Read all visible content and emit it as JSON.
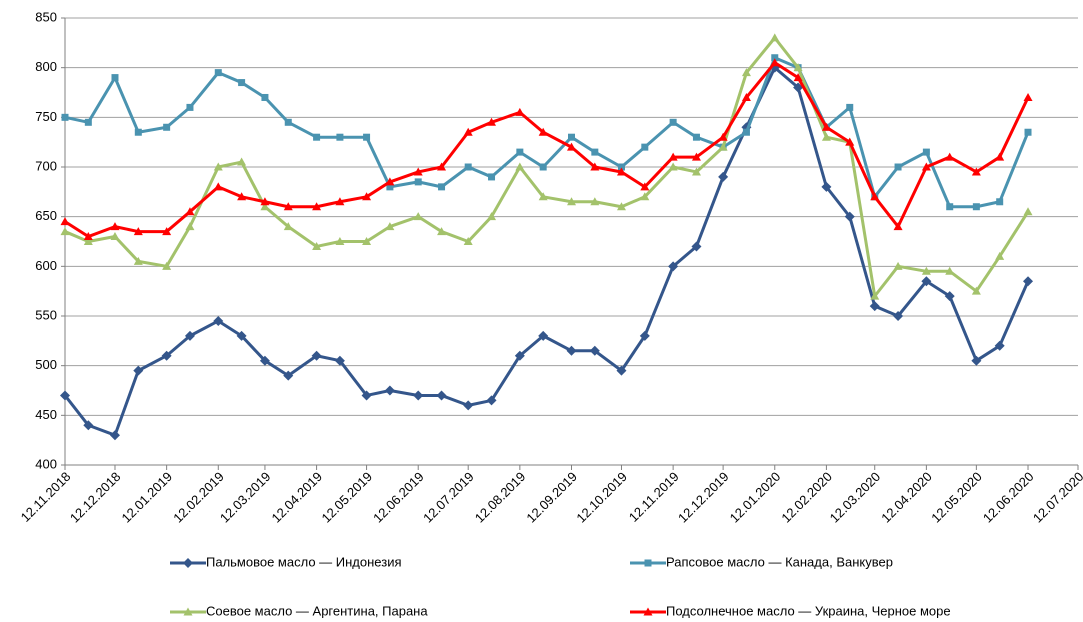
{
  "chart_data": {
    "type": "line",
    "x": [
      "12.11.2018",
      "26.11.2018",
      "12.12.2018",
      "26.12.2018",
      "12.01.2019",
      "26.01.2019",
      "12.02.2019",
      "26.02.2019",
      "12.03.2019",
      "26.03.2019",
      "12.04.2019",
      "26.04.2019",
      "12.05.2019",
      "26.05.2019",
      "12.06.2019",
      "26.06.2019",
      "12.07.2019",
      "26.07.2019",
      "12.08.2019",
      "26.08.2019",
      "12.09.2019",
      "26.09.2019",
      "12.10.2019",
      "26.10.2019",
      "12.11.2019",
      "26.11.2019",
      "12.12.2019",
      "26.12.2019",
      "12.01.2020",
      "26.01.2020",
      "12.02.2020",
      "26.02.2020",
      "12.03.2020",
      "26.03.2020",
      "12.04.2020",
      "26.04.2020",
      "12.05.2020",
      "26.05.2020",
      "12.06.2020"
    ],
    "series": [
      {
        "name": "Пальмовое масло — Индонезия",
        "color": "#34568b",
        "marker": "diamond",
        "values": [
          470,
          440,
          430,
          495,
          510,
          530,
          545,
          530,
          505,
          490,
          510,
          505,
          470,
          475,
          470,
          470,
          460,
          465,
          510,
          530,
          515,
          515,
          495,
          530,
          600,
          620,
          690,
          740,
          800,
          780,
          680,
          650,
          560,
          550,
          585,
          570,
          505,
          520,
          585
        ]
      },
      {
        "name": "Рапсовое масло — Канада, Ванкувер",
        "color": "#4a93b0",
        "marker": "square",
        "values": [
          750,
          745,
          790,
          735,
          740,
          760,
          795,
          785,
          770,
          745,
          730,
          730,
          730,
          680,
          685,
          680,
          700,
          690,
          715,
          700,
          730,
          715,
          700,
          720,
          745,
          730,
          720,
          735,
          810,
          800,
          740,
          760,
          670,
          700,
          715,
          660,
          660,
          665,
          735
        ]
      },
      {
        "name": "Соевое масло — Аргентина,  Парана",
        "color": "#a3c26b",
        "marker": "triangle",
        "values": [
          635,
          625,
          630,
          605,
          600,
          640,
          700,
          705,
          660,
          640,
          620,
          625,
          625,
          640,
          650,
          635,
          625,
          650,
          700,
          670,
          665,
          665,
          660,
          670,
          700,
          695,
          720,
          795,
          830,
          800,
          730,
          725,
          570,
          600,
          595,
          595,
          575,
          610,
          655
        ]
      },
      {
        "name": "Подсолнечное масло — Украина, Черное море",
        "color": "#ff0000",
        "marker": "triangle",
        "values": [
          645,
          630,
          640,
          635,
          635,
          655,
          680,
          670,
          665,
          660,
          660,
          665,
          670,
          685,
          695,
          700,
          735,
          745,
          755,
          735,
          720,
          700,
          695,
          680,
          710,
          710,
          730,
          770,
          805,
          790,
          740,
          725,
          670,
          640,
          700,
          710,
          695,
          710,
          770
        ]
      }
    ],
    "xlim": [
      "12.11.2018",
      "12.07.2020"
    ],
    "xticks": [
      "12.11.2018",
      "12.12.2018",
      "12.01.2019",
      "12.02.2019",
      "12.03.2019",
      "12.04.2019",
      "12.05.2019",
      "12.06.2019",
      "12.07.2019",
      "12.08.2019",
      "12.09.2019",
      "12.10.2019",
      "12.11.2019",
      "12.12.2019",
      "12.01.2020",
      "12.02.2020",
      "12.03.2020",
      "12.04.2020",
      "12.05.2020",
      "12.06.2020",
      "12.07.2020"
    ],
    "ylim": [
      400,
      850
    ],
    "yticks": [
      400,
      450,
      500,
      550,
      600,
      650,
      700,
      750,
      800,
      850
    ],
    "grid": true
  }
}
